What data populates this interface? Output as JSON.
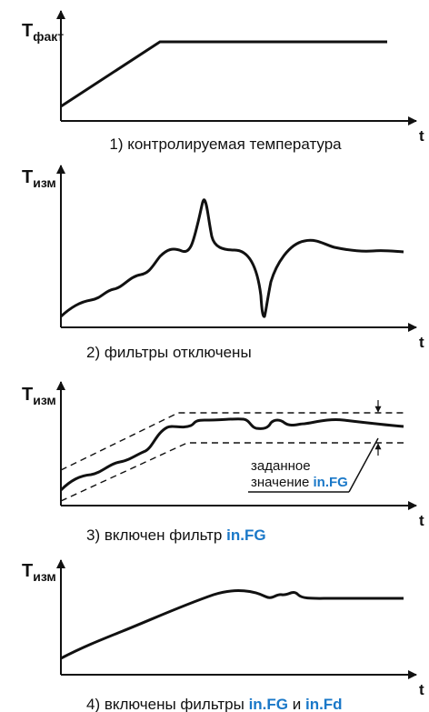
{
  "colors": {
    "ink": "#111111",
    "highlight": "#1a78c8"
  },
  "panels": [
    {
      "y_symbol": "T",
      "y_subscript": "факт",
      "x_symbol": "t",
      "caption_parts": [
        {
          "text": "1) контролируемая температура",
          "hl": false
        }
      ]
    },
    {
      "y_symbol": "T",
      "y_subscript": "изм",
      "x_symbol": "t",
      "caption_parts": [
        {
          "text": "2) фильтры отключены",
          "hl": false
        }
      ]
    },
    {
      "y_symbol": "T",
      "y_subscript": "изм",
      "x_symbol": "t",
      "caption_parts": [
        {
          "text": "3) включен фильтр ",
          "hl": false
        },
        {
          "text": "in.FG",
          "hl": true
        }
      ],
      "note_line1": "заданное",
      "note_line2_parts": [
        {
          "text": "значение ",
          "hl": false
        },
        {
          "text": "in.FG",
          "hl": true
        }
      ]
    },
    {
      "y_symbol": "T",
      "y_subscript": "изм",
      "x_symbol": "t",
      "caption_parts": [
        {
          "text": "4) включены фильтры ",
          "hl": false
        },
        {
          "text": "in.FG",
          "hl": true
        },
        {
          "text": " и ",
          "hl": false
        },
        {
          "text": "in.Fd",
          "hl": true
        }
      ]
    }
  ]
}
